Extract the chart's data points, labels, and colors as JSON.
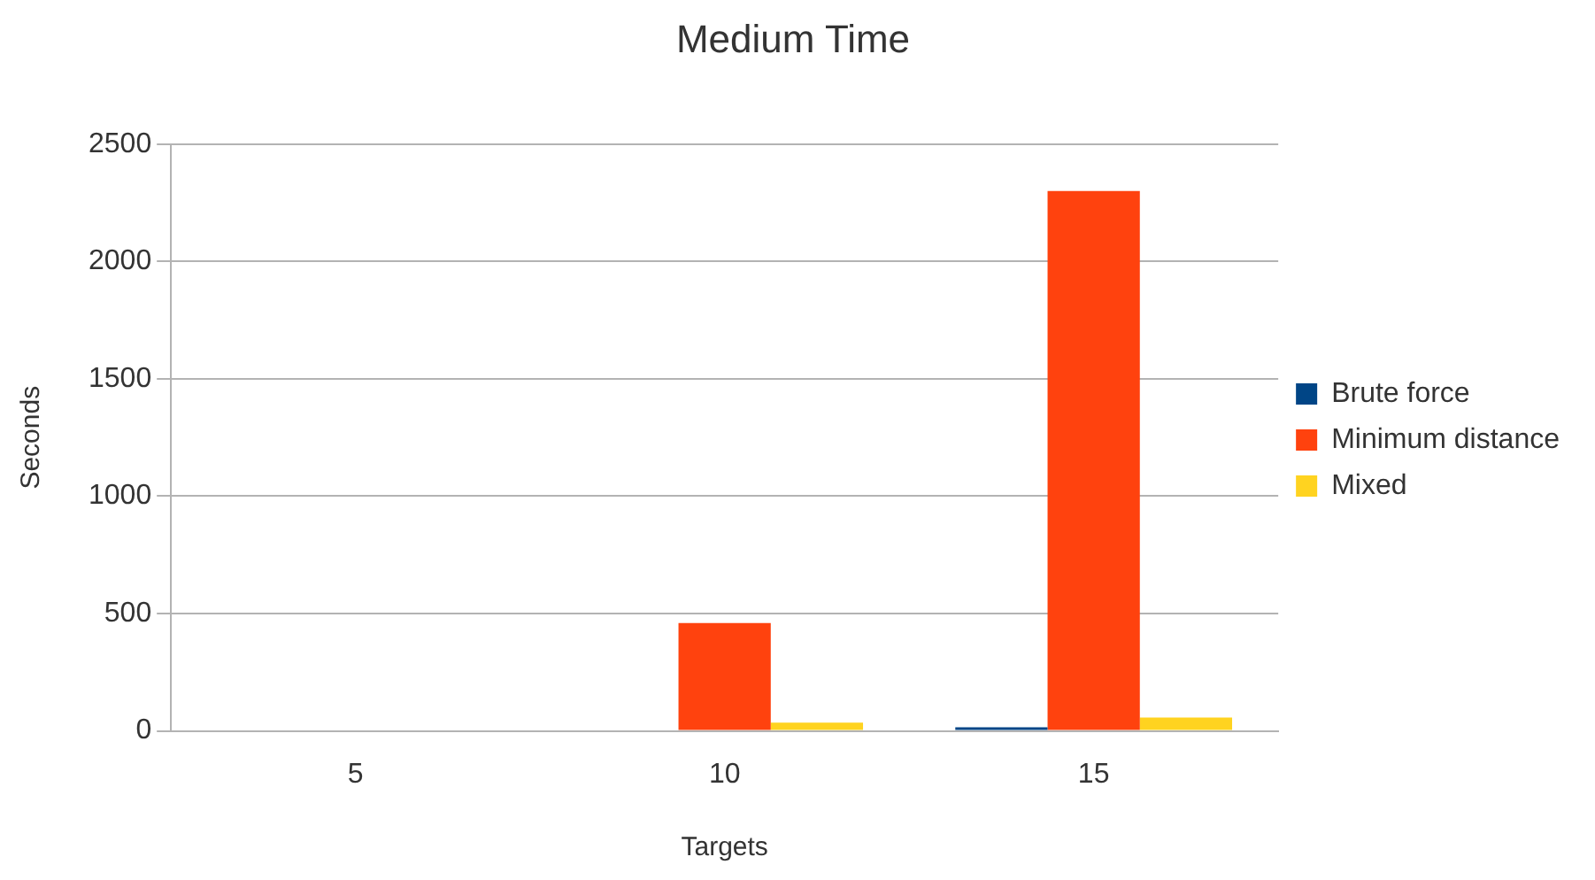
{
  "chart_data": {
    "type": "bar",
    "title": "Medium Time",
    "xlabel": "Targets",
    "ylabel": "Seconds",
    "categories": [
      "5",
      "10",
      "15"
    ],
    "series": [
      {
        "name": "Brute force",
        "color": "#004586",
        "values": [
          null,
          null,
          15
        ]
      },
      {
        "name": "Minimum distance",
        "color": "#ff420e",
        "values": [
          null,
          460,
          2300
        ]
      },
      {
        "name": "Mixed",
        "color": "#ffd320",
        "values": [
          null,
          35,
          57
        ]
      }
    ],
    "ylim": [
      0,
      2500
    ],
    "yticks": [
      0,
      500,
      1000,
      1500,
      2000,
      2500
    ],
    "grid": "y",
    "legend": "right"
  }
}
